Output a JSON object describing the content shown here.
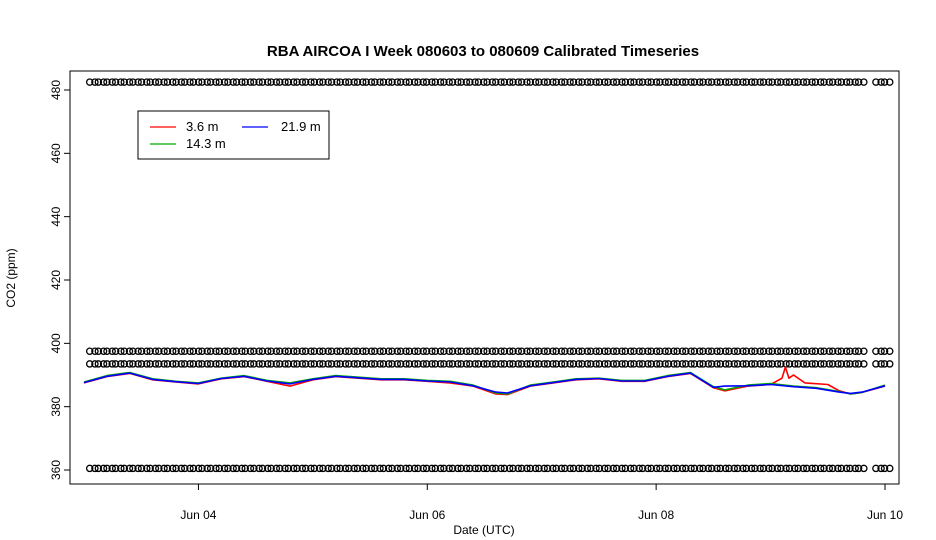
{
  "chart_data": {
    "type": "line",
    "title": "RBA AIRCOA I  Week 080603 to 080609  Calibrated Timeseries",
    "xlabel": "Date (UTC)",
    "ylabel": "CO2 (ppm)",
    "x_unit": "days",
    "xlim": [
      3.0,
      10.0
    ],
    "ylim": [
      356,
      485
    ],
    "x_ticks": [
      {
        "value": 4,
        "label": "Jun 04"
      },
      {
        "value": 6,
        "label": "Jun 06"
      },
      {
        "value": 8,
        "label": "Jun 08"
      },
      {
        "value": 10,
        "label": "Jun 10"
      }
    ],
    "y_ticks": [
      360,
      380,
      400,
      420,
      440,
      460,
      480
    ],
    "legend_position": "top-left",
    "grid": false,
    "series": [
      {
        "name": "3.6 m",
        "color": "#ff0000",
        "x": [
          3.0,
          3.2,
          3.4,
          3.6,
          3.8,
          4.0,
          4.2,
          4.4,
          4.6,
          4.8,
          5.0,
          5.2,
          5.4,
          5.6,
          5.8,
          6.0,
          6.2,
          6.4,
          6.6,
          6.7,
          6.9,
          7.1,
          7.3,
          7.5,
          7.7,
          7.9,
          8.1,
          8.3,
          8.5,
          8.6,
          8.8,
          9.0,
          9.1,
          9.13,
          9.16,
          9.2,
          9.3,
          9.5,
          9.6,
          9.7,
          9.8,
          10.0
        ],
        "y": [
          387.5,
          389.5,
          390.5,
          388.5,
          387.8,
          387.2,
          388.8,
          389.5,
          388.0,
          386.5,
          388.5,
          389.5,
          389.0,
          388.5,
          388.5,
          388.0,
          387.5,
          386.5,
          384.0,
          383.8,
          386.5,
          387.5,
          388.5,
          388.8,
          388.0,
          388.0,
          389.5,
          390.5,
          386.0,
          385.0,
          386.5,
          387.0,
          389.0,
          392.5,
          389.0,
          390.0,
          387.5,
          387.0,
          385.0,
          384.0,
          384.5,
          386.5
        ]
      },
      {
        "name": "14.3 m",
        "color": "#00aa00",
        "x": [
          3.0,
          3.2,
          3.4,
          3.6,
          3.8,
          4.0,
          4.2,
          4.4,
          4.6,
          4.8,
          5.0,
          5.2,
          5.4,
          5.6,
          5.8,
          6.0,
          6.2,
          6.4,
          6.6,
          6.7,
          6.9,
          7.1,
          7.3,
          7.5,
          7.7,
          7.9,
          8.1,
          8.3,
          8.5,
          8.6,
          8.8,
          9.0,
          9.2,
          9.4,
          9.6,
          9.7,
          9.8,
          10.0
        ],
        "y": [
          387.8,
          389.8,
          390.8,
          388.8,
          388.0,
          387.5,
          389.0,
          389.8,
          388.3,
          387.5,
          388.8,
          389.8,
          389.3,
          388.8,
          388.8,
          388.3,
          388.0,
          386.8,
          384.3,
          384.0,
          386.8,
          387.8,
          388.8,
          389.0,
          388.3,
          388.3,
          389.8,
          390.8,
          386.3,
          385.3,
          386.8,
          387.3,
          386.5,
          386.0,
          384.8,
          384.0,
          384.5,
          386.8
        ]
      },
      {
        "name": "21.9 m",
        "color": "#0000ff",
        "x": [
          3.0,
          3.2,
          3.4,
          3.6,
          3.8,
          4.0,
          4.2,
          4.4,
          4.6,
          4.8,
          5.0,
          5.2,
          5.4,
          5.6,
          5.8,
          6.0,
          6.2,
          6.4,
          6.6,
          6.7,
          6.9,
          7.1,
          7.3,
          7.5,
          7.7,
          7.9,
          8.1,
          8.3,
          8.5,
          8.6,
          8.8,
          9.0,
          9.2,
          9.4,
          9.6,
          9.7,
          9.8,
          10.0
        ],
        "y": [
          387.6,
          389.6,
          390.6,
          388.6,
          387.9,
          387.3,
          388.9,
          389.6,
          388.1,
          387.2,
          388.6,
          389.6,
          389.1,
          388.6,
          388.6,
          388.1,
          387.8,
          386.6,
          384.6,
          384.3,
          386.6,
          387.6,
          388.6,
          388.9,
          388.1,
          388.1,
          389.6,
          390.6,
          386.1,
          386.5,
          386.6,
          387.0,
          386.3,
          385.8,
          384.6,
          384.2,
          384.6,
          386.6
        ]
      }
    ],
    "marker_rows": [
      {
        "y": 482.5,
        "x_start": 3.05,
        "x_end": 10.0,
        "gaps": [
          9.85
        ]
      },
      {
        "y": 397.5,
        "x_start": 3.05,
        "x_end": 10.0,
        "gaps": [
          9.85
        ]
      },
      {
        "y": 393.5,
        "x_start": 3.05,
        "x_end": 10.0,
        "gaps": [
          9.85
        ]
      },
      {
        "y": 360.5,
        "x_start": 3.05,
        "x_end": 10.0,
        "gaps": [
          9.85
        ]
      }
    ]
  }
}
